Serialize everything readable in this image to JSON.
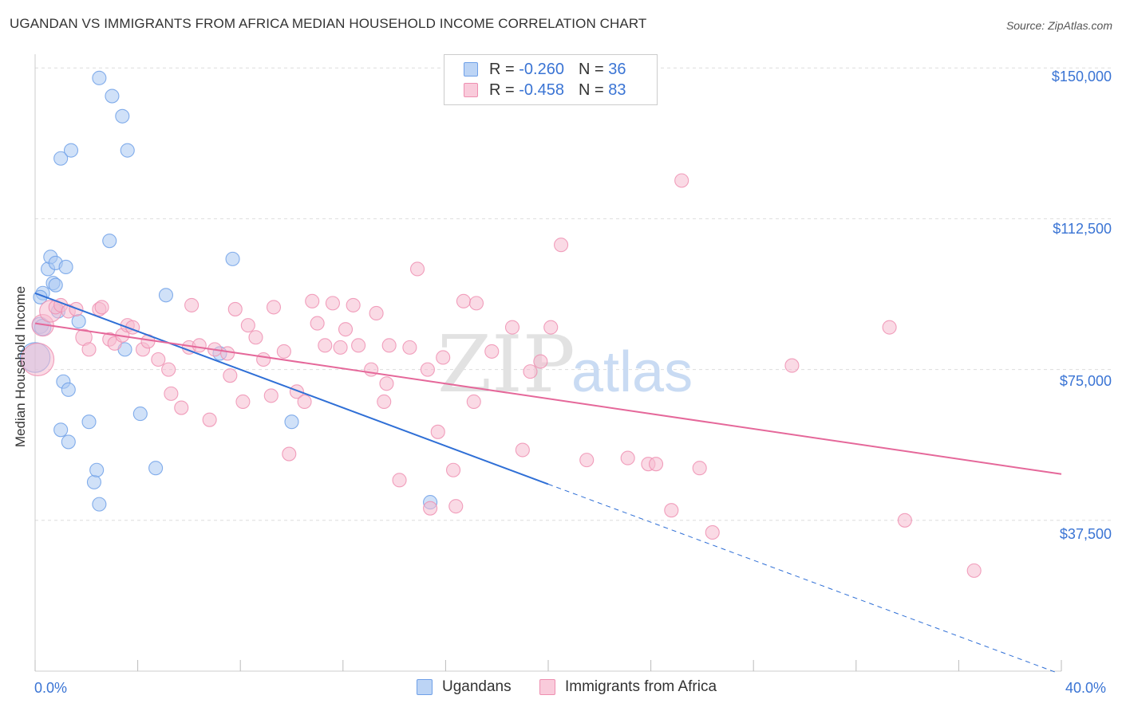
{
  "title": "UGANDAN VS IMMIGRANTS FROM AFRICA MEDIAN HOUSEHOLD INCOME CORRELATION CHART",
  "source": "Source: ZipAtlas.com",
  "watermark": {
    "zip": "ZIP",
    "atlas": "atlas"
  },
  "legend": {
    "rows": [
      {
        "r_label": "R = ",
        "r_value": "-0.260",
        "n_label": "N = ",
        "n_value": "36",
        "color": "#6fa0e8"
      },
      {
        "r_label": "R = ",
        "r_value": "-0.458",
        "n_label": "N = ",
        "n_value": "83",
        "color": "#f08ab0"
      }
    ]
  },
  "bottom_legend": {
    "ugandans": "Ugandans",
    "immigrants": "Immigrants from Africa"
  },
  "colors": {
    "blue_fill": "#a9c8f2",
    "blue_stroke": "#6fa0e8",
    "blue_line": "#2f6fd6",
    "pink_fill": "#f6bcd0",
    "pink_stroke": "#ee8fb1",
    "pink_line": "#e5689a",
    "grid": "#dddddd",
    "axis_text": "#3a74d4"
  },
  "chart_data": {
    "type": "scatter",
    "title": "UGANDAN VS IMMIGRANTS FROM AFRICA MEDIAN HOUSEHOLD INCOME CORRELATION CHART",
    "xlabel": "",
    "ylabel": "Median Household Income",
    "xlim": [
      0,
      40
    ],
    "ylim": [
      0,
      155000
    ],
    "x_tick_labels": [
      "0.0%",
      "40.0%"
    ],
    "y_ticks": [
      37500,
      75000,
      112500,
      150000
    ],
    "y_tick_labels": [
      "$37,500",
      "$75,000",
      "$112,500",
      "$150,000"
    ],
    "grid": true,
    "legend_position": "top-center",
    "series": [
      {
        "name": "Ugandans",
        "r": -0.26,
        "n": 36,
        "trend": {
          "x0": 0,
          "y0": 94000,
          "x1": 20,
          "y1": 46500,
          "dash_to_x": 40,
          "dash_to_y": -1000
        },
        "points": [
          [
            0.0,
            78000,
            2.2
          ],
          [
            0.2,
            86000,
            1.2
          ],
          [
            0.3,
            85500,
            1.2
          ],
          [
            0.3,
            94000,
            1.0
          ],
          [
            0.5,
            100000,
            1.0
          ],
          [
            0.6,
            103000,
            1.0
          ],
          [
            0.7,
            96500,
            1.0
          ],
          [
            0.8,
            96000,
            1.0
          ],
          [
            0.8,
            101500,
            1.0
          ],
          [
            0.9,
            89500,
            1.0
          ],
          [
            1.0,
            60000,
            1.0
          ],
          [
            1.0,
            127500,
            1.0
          ],
          [
            1.1,
            72000,
            1.0
          ],
          [
            1.2,
            100500,
            1.0
          ],
          [
            1.3,
            70000,
            1.0
          ],
          [
            1.3,
            57000,
            1.0
          ],
          [
            1.4,
            129500,
            1.0
          ],
          [
            1.7,
            87000,
            1.0
          ],
          [
            2.1,
            62000,
            1.0
          ],
          [
            2.3,
            47000,
            1.0
          ],
          [
            2.4,
            50000,
            1.0
          ],
          [
            2.5,
            41500,
            1.0
          ],
          [
            2.5,
            147500,
            1.0
          ],
          [
            2.9,
            107000,
            1.0
          ],
          [
            3.0,
            143000,
            1.0
          ],
          [
            3.4,
            138000,
            1.0
          ],
          [
            3.5,
            80000,
            1.0
          ],
          [
            3.6,
            129500,
            1.0
          ],
          [
            4.1,
            64000,
            1.0
          ],
          [
            4.7,
            50500,
            1.0
          ],
          [
            5.1,
            93500,
            1.0
          ],
          [
            7.2,
            79000,
            1.0
          ],
          [
            7.7,
            102500,
            1.0
          ],
          [
            10.0,
            62000,
            1.0
          ],
          [
            15.4,
            42000,
            1.0
          ],
          [
            0.2,
            93000,
            1.0
          ]
        ]
      },
      {
        "name": "Immigrants from Africa",
        "r": -0.458,
        "n": 83,
        "trend": {
          "x0": 0,
          "y0": 86500,
          "x1": 40,
          "y1": 49000
        },
        "points": [
          [
            0.1,
            77500,
            2.4
          ],
          [
            0.3,
            86000,
            1.6
          ],
          [
            0.6,
            89500,
            1.6
          ],
          [
            0.8,
            90500,
            1.0
          ],
          [
            1.0,
            91000,
            1.0
          ],
          [
            1.3,
            89500,
            1.0
          ],
          [
            1.6,
            90000,
            1.0
          ],
          [
            1.9,
            83000,
            1.2
          ],
          [
            2.1,
            80000,
            1.0
          ],
          [
            2.5,
            90000,
            1.0
          ],
          [
            2.6,
            90500,
            1.0
          ],
          [
            2.9,
            82500,
            1.0
          ],
          [
            3.1,
            81500,
            1.0
          ],
          [
            3.4,
            83500,
            1.0
          ],
          [
            3.6,
            86000,
            1.0
          ],
          [
            3.8,
            85500,
            1.0
          ],
          [
            4.2,
            80000,
            1.0
          ],
          [
            4.4,
            82000,
            1.0
          ],
          [
            4.8,
            77500,
            1.0
          ],
          [
            5.2,
            75000,
            1.0
          ],
          [
            5.3,
            69000,
            1.0
          ],
          [
            5.7,
            65500,
            1.0
          ],
          [
            6.0,
            80500,
            1.0
          ],
          [
            6.1,
            91000,
            1.0
          ],
          [
            6.4,
            81000,
            1.0
          ],
          [
            6.8,
            62500,
            1.0
          ],
          [
            7.0,
            80000,
            1.0
          ],
          [
            7.5,
            79000,
            1.0
          ],
          [
            7.6,
            73500,
            1.0
          ],
          [
            7.8,
            90000,
            1.0
          ],
          [
            8.1,
            67000,
            1.0
          ],
          [
            8.3,
            86000,
            1.0
          ],
          [
            8.6,
            83000,
            1.0
          ],
          [
            8.9,
            77500,
            1.0
          ],
          [
            9.2,
            68500,
            1.0
          ],
          [
            9.3,
            90500,
            1.0
          ],
          [
            9.7,
            79500,
            1.0
          ],
          [
            9.9,
            54000,
            1.0
          ],
          [
            10.2,
            69500,
            1.0
          ],
          [
            10.5,
            67000,
            1.0
          ],
          [
            10.8,
            92000,
            1.0
          ],
          [
            11.0,
            86500,
            1.0
          ],
          [
            11.3,
            81000,
            1.0
          ],
          [
            11.6,
            91500,
            1.0
          ],
          [
            11.9,
            80500,
            1.0
          ],
          [
            12.1,
            85000,
            1.0
          ],
          [
            12.4,
            91000,
            1.0
          ],
          [
            12.6,
            81000,
            1.0
          ],
          [
            13.1,
            75000,
            1.0
          ],
          [
            13.3,
            89000,
            1.0
          ],
          [
            13.6,
            67000,
            1.0
          ],
          [
            13.7,
            71500,
            1.0
          ],
          [
            13.8,
            81000,
            1.0
          ],
          [
            14.2,
            47500,
            1.0
          ],
          [
            14.6,
            80500,
            1.0
          ],
          [
            14.9,
            100000,
            1.0
          ],
          [
            15.3,
            75000,
            1.0
          ],
          [
            15.4,
            40500,
            1.0
          ],
          [
            15.7,
            59500,
            1.0
          ],
          [
            15.9,
            78000,
            1.0
          ],
          [
            16.3,
            50000,
            1.0
          ],
          [
            16.4,
            41000,
            1.0
          ],
          [
            16.7,
            92000,
            1.0
          ],
          [
            17.1,
            67000,
            1.0
          ],
          [
            17.2,
            91500,
            1.0
          ],
          [
            17.8,
            79500,
            1.0
          ],
          [
            18.6,
            85500,
            1.0
          ],
          [
            19.0,
            55000,
            1.0
          ],
          [
            19.3,
            74500,
            1.0
          ],
          [
            19.7,
            77000,
            1.0
          ],
          [
            20.1,
            85500,
            1.0
          ],
          [
            20.5,
            106000,
            1.0
          ],
          [
            21.5,
            52500,
            1.0
          ],
          [
            23.1,
            53000,
            1.0
          ],
          [
            23.9,
            51500,
            1.0
          ],
          [
            24.2,
            51500,
            1.0
          ],
          [
            24.8,
            40000,
            1.0
          ],
          [
            25.2,
            122000,
            1.0
          ],
          [
            25.9,
            50500,
            1.0
          ],
          [
            26.4,
            34500,
            1.0
          ],
          [
            29.5,
            76000,
            1.0
          ],
          [
            33.3,
            85500,
            1.0
          ],
          [
            33.9,
            37500,
            1.0
          ],
          [
            36.6,
            25000,
            1.0
          ]
        ]
      }
    ]
  },
  "y_axis_title": "Median Household Income"
}
